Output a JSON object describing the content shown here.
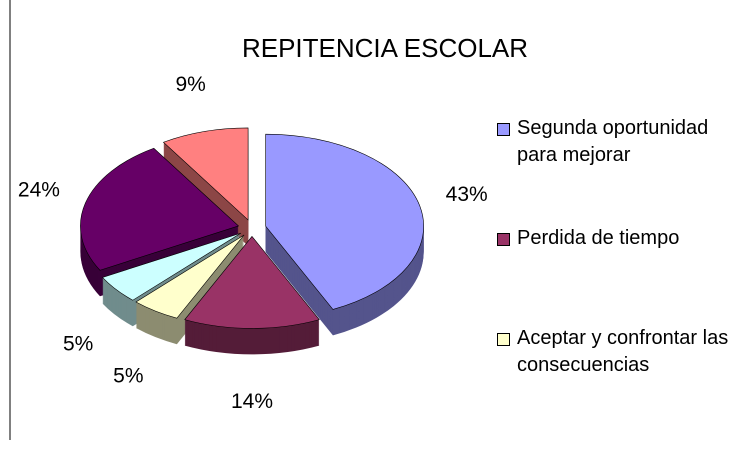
{
  "chart_data": {
    "type": "pie",
    "title": "REPITENCIA ESCOLAR",
    "categories": [
      "Segunda oportunidad para mejorar",
      "Perdida de tiempo",
      "Aceptar  y confrontar las consecuencias",
      null,
      null,
      null
    ],
    "values": [
      43,
      14,
      5,
      5,
      24,
      9
    ],
    "value_labels": [
      "43%",
      "14%",
      "5%",
      "5%",
      "24%",
      "9%"
    ],
    "colors": [
      "#9999ff",
      "#993366",
      "#ffffcc",
      "#ccffff",
      "#660066",
      "#ff8080"
    ],
    "legend": "right",
    "exploded": true,
    "three_d": true
  }
}
